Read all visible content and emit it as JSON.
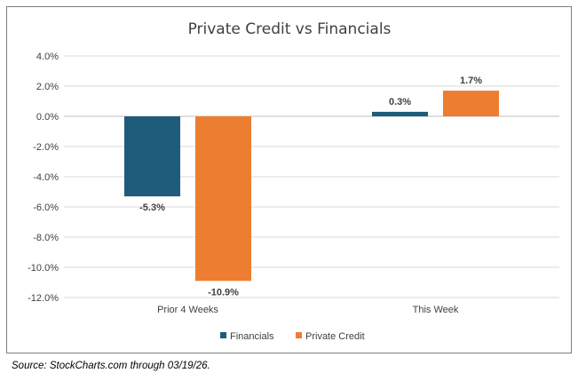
{
  "chart_data": {
    "type": "bar",
    "title": "Private Credit vs Financials",
    "categories": [
      "Prior 4 Weeks",
      "This Week"
    ],
    "series": [
      {
        "name": "Financials",
        "values": [
          -5.3,
          0.3
        ],
        "labels": [
          "-5.3%",
          "0.3%"
        ],
        "color": "#1f5c7a"
      },
      {
        "name": "Private Credit",
        "values": [
          -10.9,
          1.7
        ],
        "labels": [
          "-10.9%",
          "1.7%"
        ],
        "color": "#ed7d31"
      }
    ],
    "ylim": [
      -12,
      4
    ],
    "yticks": [
      4,
      2,
      0,
      -2,
      -4,
      -6,
      -8,
      -10,
      -12
    ],
    "ytick_labels": [
      "4.0%",
      "2.0%",
      "0.0%",
      "-2.0%",
      "-4.0%",
      "-6.0%",
      "-8.0%",
      "-10.0%",
      "-12.0%"
    ],
    "legend": "bottom",
    "grid": true
  },
  "source_note": "Source:  StockCharts.com through 03/19/26."
}
